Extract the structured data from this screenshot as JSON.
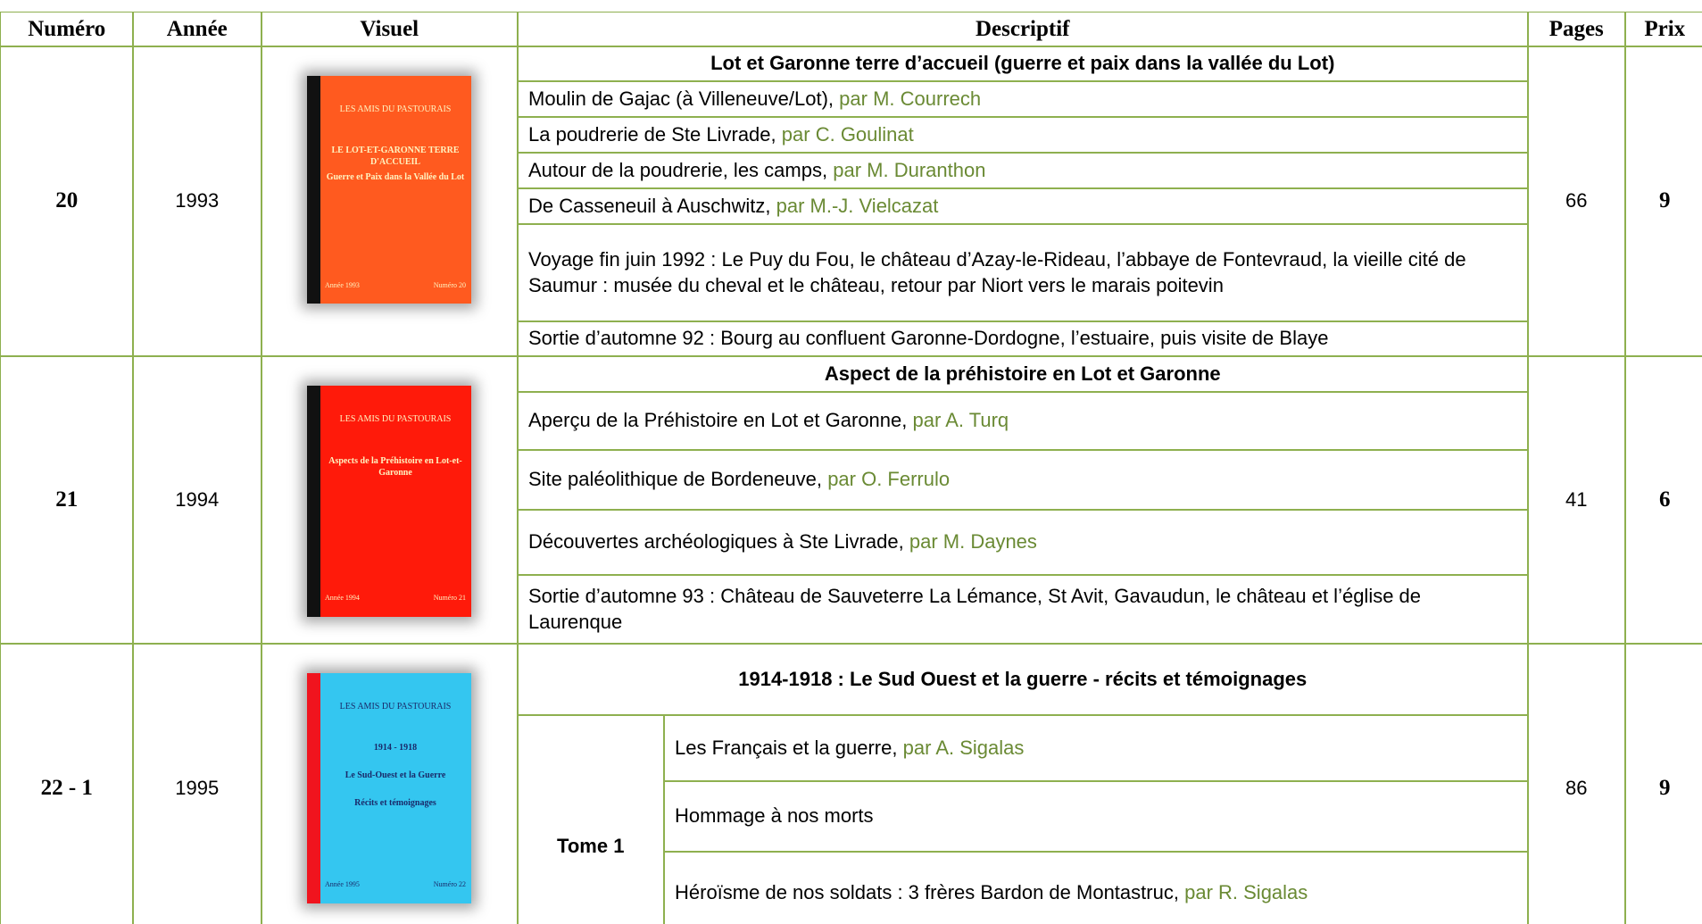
{
  "header": [
    "Numéro",
    "Année",
    "Visuel",
    "Descriptif",
    "Pages",
    "Prix"
  ],
  "rows": [
    {
      "numero": "20",
      "annee": 1993,
      "cover": {
        "lines": [
          "LES AMIS DU PASTOURAIS",
          "LE LOT-ET-GARONNE TERRE D'ACCUEIL",
          "Guerre et Paix dans la Vallée du Lot"
        ],
        "footer": [
          "Année 1993",
          "Numéro 20"
        ]
      },
      "title": "Lot et Garonne terre d’accueil (guerre et paix dans la vallée du Lot)",
      "items": [
        {
          "text": "Moulin de Gajac (à Villeneuve/Lot),",
          "author": "par M. Courrech"
        },
        {
          "text": "La poudrerie de Ste Livrade,",
          "author": "par C. Goulinat"
        },
        {
          "text": "Autour de la poudrerie, les camps,",
          "author": "par M. Duranthon"
        },
        {
          "text": "De Casseneuil à Auschwitz,",
          "author": "par M.-J. Vielcazat"
        },
        {
          "text": "Voyage fin juin 1992 : Le Puy du Fou, le château d’Azay-le-Rideau, l’abbaye de Fontevraud, la vieille cité de Saumur : musée du cheval et le château, retour par Niort vers le marais poitevin"
        },
        {
          "text": "Sortie d’automne 92 : Bourg au confluent Garonne-Dordogne, l’estuaire, puis visite de Blaye"
        }
      ],
      "pages": 66,
      "prix": 9
    },
    {
      "numero": "21",
      "annee": 1994,
      "cover": {
        "lines": [
          "LES AMIS DU PASTOURAIS",
          "Aspects de la Préhistoire en Lot-et-Garonne"
        ],
        "footer": [
          "Année 1994",
          "Numéro 21"
        ]
      },
      "title": "Aspect de la préhistoire en Lot et Garonne",
      "items": [
        {
          "text": "Aperçu de la Préhistoire en Lot et Garonne,",
          "author": "par A. Turq"
        },
        {
          "text": "Site paléolithique de Bordeneuve,",
          "author": "par O. Ferrulo"
        },
        {
          "text": "Découvertes archéologiques à Ste Livrade,",
          "author": "par M. Daynes"
        },
        {
          "text": "Sortie d’automne 93 : Château de Sauveterre La Lémance, St Avit, Gavaudun, le château et l’église de Laurenque"
        }
      ],
      "pages": 41,
      "prix": 6
    },
    {
      "numero": "22 - 1",
      "annee": 1995,
      "cover": {
        "lines": [
          "LES AMIS DU PASTOURAIS",
          "1914 - 1918",
          "Le Sud-Ouest et la Guerre",
          "Récits et témoignages"
        ],
        "footer": [
          "Année 1995",
          "Numéro 22"
        ]
      },
      "title": "1914-1918 : Le Sud Ouest et la guerre - récits et témoignages",
      "tome": "Tome 1",
      "items": [
        {
          "text": "Les Français et la guerre,",
          "author": "par A. Sigalas"
        },
        {
          "text": "Hommage à nos morts"
        },
        {
          "text": "Héroïsme de nos soldats : 3 frères Bardon de Montastruc,",
          "author": "par R. Sigalas"
        }
      ],
      "pages": 86,
      "prix": 9
    }
  ]
}
